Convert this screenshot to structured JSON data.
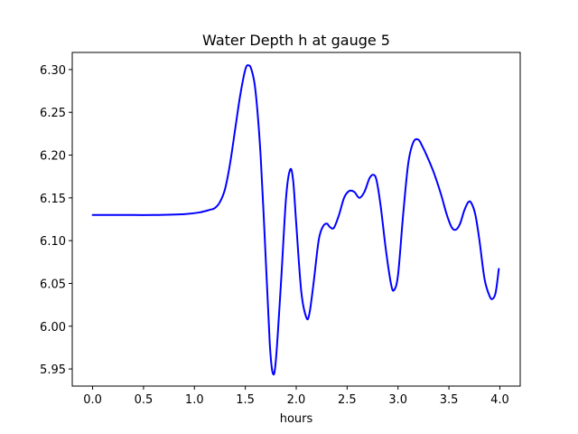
{
  "chart_data": {
    "type": "line",
    "title": "Water Depth h at gauge 5",
    "xlabel": "hours",
    "ylabel": "",
    "xlim": [
      -0.2,
      4.2
    ],
    "ylim": [
      5.93,
      6.32
    ],
    "xticks": [
      0.0,
      0.5,
      1.0,
      1.5,
      2.0,
      2.5,
      3.0,
      3.5,
      4.0
    ],
    "xtick_labels": [
      "0.0",
      "0.5",
      "1.0",
      "1.5",
      "2.0",
      "2.5",
      "3.0",
      "3.5",
      "4.0"
    ],
    "yticks": [
      5.95,
      6.0,
      6.05,
      6.1,
      6.15,
      6.2,
      6.25,
      6.3
    ],
    "ytick_labels": [
      "5.95",
      "6.00",
      "6.05",
      "6.10",
      "6.15",
      "6.20",
      "6.25",
      "6.30"
    ],
    "grid": false,
    "series": [
      {
        "color": "#0000ff",
        "x": [
          0.0,
          0.3,
          0.6,
          0.9,
          1.05,
          1.15,
          1.2,
          1.25,
          1.3,
          1.35,
          1.4,
          1.45,
          1.5,
          1.53,
          1.56,
          1.6,
          1.65,
          1.7,
          1.74,
          1.77,
          1.8,
          1.85,
          1.9,
          1.94,
          1.97,
          2.0,
          2.05,
          2.1,
          2.13,
          2.17,
          2.22,
          2.26,
          2.3,
          2.33,
          2.37,
          2.42,
          2.47,
          2.52,
          2.57,
          2.62,
          2.67,
          2.72,
          2.76,
          2.79,
          2.83,
          2.88,
          2.93,
          2.96,
          3.0,
          3.05,
          3.1,
          3.15,
          3.2,
          3.24,
          3.28,
          3.35,
          3.42,
          3.48,
          3.53,
          3.57,
          3.61,
          3.65,
          3.69,
          3.72,
          3.76,
          3.8,
          3.85,
          3.9,
          3.93,
          3.96,
          3.99
        ],
        "y": [
          6.13,
          6.13,
          6.13,
          6.131,
          6.133,
          6.136,
          6.138,
          6.145,
          6.16,
          6.19,
          6.23,
          6.27,
          6.3,
          6.305,
          6.3,
          6.275,
          6.2,
          6.08,
          5.98,
          5.945,
          5.96,
          6.05,
          6.15,
          6.183,
          6.17,
          6.12,
          6.04,
          6.01,
          6.015,
          6.05,
          6.1,
          6.116,
          6.12,
          6.116,
          6.115,
          6.13,
          6.15,
          6.158,
          6.157,
          6.15,
          6.157,
          6.173,
          6.177,
          6.17,
          6.14,
          6.09,
          6.05,
          6.042,
          6.06,
          6.13,
          6.19,
          6.215,
          6.218,
          6.21,
          6.2,
          6.18,
          6.155,
          6.13,
          6.115,
          6.113,
          6.12,
          6.135,
          6.145,
          6.144,
          6.13,
          6.1,
          6.055,
          6.035,
          6.032,
          6.04,
          6.067
        ]
      }
    ]
  }
}
